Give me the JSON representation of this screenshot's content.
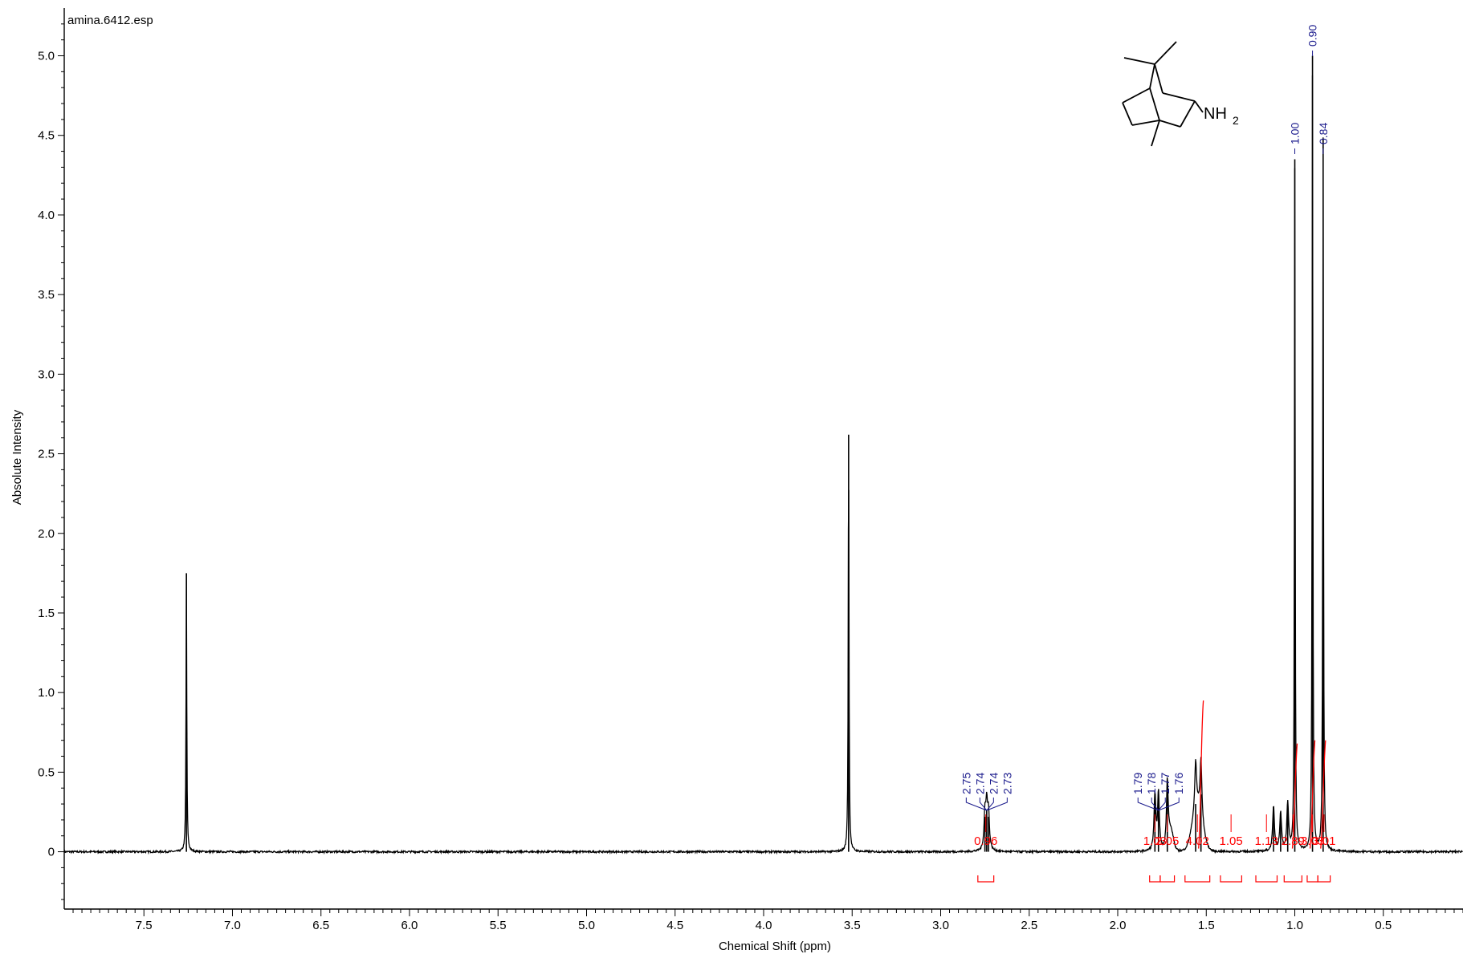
{
  "chart_data": {
    "type": "line",
    "file_label": "amina.6412.esp",
    "xlabel": "Chemical Shift (ppm)",
    "ylabel": "Absolute Intensity",
    "xlim": [
      7.95,
      0.05
    ],
    "ylim": [
      -0.36,
      5.3
    ],
    "x_reversed": true,
    "x_ticks": [
      "7.5",
      "7.0",
      "6.5",
      "6.0",
      "5.5",
      "5.0",
      "4.5",
      "4.0",
      "3.5",
      "3.0",
      "2.5",
      "2.0",
      "1.5",
      "1.0",
      "0.5"
    ],
    "y_ticks": [
      "0",
      "0.5",
      "1.0",
      "1.5",
      "2.0",
      "2.5",
      "3.0",
      "3.5",
      "4.0",
      "4.5",
      "5.0"
    ],
    "peaks": [
      {
        "x": 7.26,
        "h": 1.75
      },
      {
        "x": 3.52,
        "h": 2.62
      },
      {
        "x": 2.75,
        "h": 0.22
      },
      {
        "x": 2.74,
        "h": 0.26
      },
      {
        "x": 2.73,
        "h": 0.22
      },
      {
        "x": 1.79,
        "h": 0.35
      },
      {
        "x": 1.77,
        "h": 0.36
      },
      {
        "x": 1.72,
        "h": 0.42
      },
      {
        "x": 1.56,
        "h": 0.3
      },
      {
        "x": 1.53,
        "h": 0.36
      },
      {
        "x": 1.12,
        "h": 0.28
      },
      {
        "x": 1.08,
        "h": 0.24
      },
      {
        "x": 1.04,
        "h": 0.3
      },
      {
        "x": 1.0,
        "h": 4.35
      },
      {
        "x": 0.9,
        "h": 5.0
      },
      {
        "x": 0.84,
        "h": 4.48
      },
      {
        "x": 0.03,
        "h": 0.05
      }
    ],
    "peak_labels": [
      {
        "group": "2.7",
        "labels": [
          "2.75",
          "2.74",
          "2.74",
          "2.73"
        ],
        "anchor": 2.74
      },
      {
        "group": "1.78",
        "labels": [
          "1.79",
          "1.78",
          "1.77",
          "1.76"
        ],
        "anchor": 1.77
      },
      {
        "group": "single",
        "labels": [
          "1.00"
        ],
        "anchor": 1.0
      },
      {
        "group": "single",
        "labels": [
          "0.90"
        ],
        "anchor": 0.9
      },
      {
        "group": "single",
        "labels": [
          "0.84"
        ],
        "anchor": 0.84
      }
    ],
    "integrals": [
      {
        "value": "0.96",
        "from": 2.79,
        "to": 2.7
      },
      {
        "value": "1.03",
        "from": 1.82,
        "to": 1.76
      },
      {
        "value": "2.05",
        "from": 1.76,
        "to": 1.68
      },
      {
        "value": "4.02",
        "from": 1.62,
        "to": 1.48
      },
      {
        "value": "1.05",
        "from": 1.42,
        "to": 1.3
      },
      {
        "value": "1.13",
        "from": 1.22,
        "to": 1.1
      },
      {
        "value": "2.89",
        "from": 1.06,
        "to": 0.96
      },
      {
        "value": "3.03",
        "from": 0.93,
        "to": 0.87
      },
      {
        "value": "3.01",
        "from": 0.87,
        "to": 0.8
      }
    ],
    "molecule_label": "NH",
    "molecule_label_sub": "2"
  }
}
